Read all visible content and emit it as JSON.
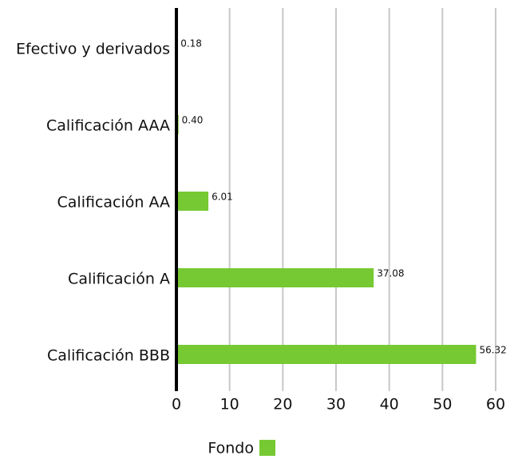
{
  "chart_data": {
    "type": "barh",
    "categories": [
      "Efectivo y derivados",
      "Calificación AAA",
      "Calificación AA",
      "Calificación A",
      "Calificación BBB"
    ],
    "series": [
      {
        "name": "Fondo",
        "color": "#76c932",
        "values": [
          0.18,
          0.4,
          6.01,
          37.08,
          56.32
        ],
        "value_labels": [
          "0.18",
          "0.40",
          "6.01",
          "37.08",
          "56.32"
        ]
      }
    ],
    "xlim": [
      0,
      60
    ],
    "xticks": [
      0,
      10,
      20,
      30,
      40,
      50,
      60
    ],
    "grid": true,
    "legend": "bottom"
  }
}
